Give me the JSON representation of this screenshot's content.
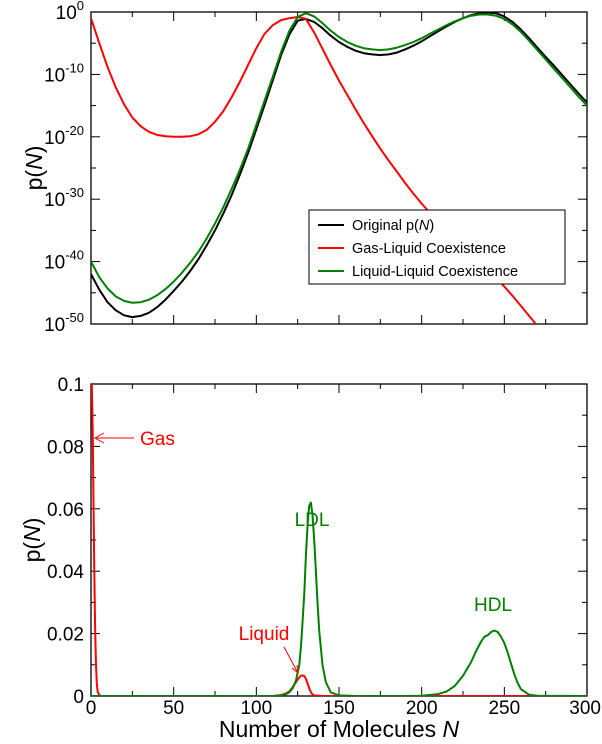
{
  "chart_data": [
    {
      "type": "line",
      "ylabel_main": "p(",
      "ylabel_var": "N",
      "ylabel_close": ")",
      "yscale": "log",
      "xlim": [
        0,
        300
      ],
      "ylim_exp": [
        -50,
        0
      ],
      "xticks": [
        0,
        50,
        100,
        150,
        200,
        250,
        300
      ],
      "ytick_exponents": [
        "0",
        "-10",
        "-20",
        "-30",
        "-40",
        "-50"
      ],
      "ytick_base": "10",
      "legend_position": "lower-right",
      "series": [
        {
          "name": "Original p(N)",
          "color": "#000000",
          "x": [
            0,
            5,
            10,
            15,
            20,
            25,
            30,
            35,
            40,
            45,
            50,
            55,
            60,
            65,
            70,
            75,
            80,
            85,
            90,
            95,
            100,
            105,
            110,
            115,
            120,
            125,
            130,
            135,
            140,
            145,
            150,
            155,
            160,
            165,
            170,
            175,
            180,
            185,
            190,
            195,
            200,
            205,
            210,
            215,
            220,
            225,
            230,
            235,
            240,
            245,
            250,
            255,
            260,
            265,
            270,
            275,
            280,
            285,
            290,
            295,
            300
          ],
          "y_log10": [
            -42,
            -44.5,
            -46.5,
            -47.8,
            -48.6,
            -48.9,
            -48.7,
            -48.2,
            -47.3,
            -46.1,
            -44.7,
            -43.2,
            -41.5,
            -39.6,
            -37.4,
            -35,
            -32.3,
            -29.4,
            -26.1,
            -22.6,
            -18.8,
            -14.9,
            -10.9,
            -6.9,
            -3.6,
            -1.4,
            -1.1,
            -1.6,
            -2.6,
            -3.8,
            -4.8,
            -5.6,
            -6.2,
            -6.6,
            -6.8,
            -6.9,
            -6.8,
            -6.5,
            -6,
            -5.4,
            -4.7,
            -3.9,
            -3.1,
            -2.3,
            -1.6,
            -1,
            -0.5,
            -0.2,
            -0.1,
            -0.2,
            -0.7,
            -1.6,
            -2.8,
            -4.2,
            -5.7,
            -7.2,
            -8.6,
            -10.1,
            -11.6,
            -13.1,
            -14.5
          ]
        },
        {
          "name": "Gas-Liquid Coexistence",
          "color": "#ff0000",
          "x": [
            0,
            5,
            10,
            15,
            20,
            25,
            30,
            35,
            40,
            45,
            50,
            55,
            60,
            65,
            70,
            75,
            80,
            85,
            90,
            95,
            100,
            105,
            110,
            115,
            120,
            125,
            130,
            135,
            140,
            145,
            150,
            155,
            160,
            165,
            170,
            175,
            180,
            185,
            190,
            195,
            200,
            205,
            210,
            215,
            220,
            225,
            230,
            235,
            240,
            245,
            250,
            255,
            260,
            265,
            270
          ],
          "y_log10": [
            -1,
            -5,
            -8.8,
            -12.1,
            -14.8,
            -16.9,
            -18.3,
            -19.2,
            -19.7,
            -19.9,
            -20,
            -20,
            -19.9,
            -19.6,
            -18.9,
            -17.6,
            -15.9,
            -13.7,
            -11.2,
            -8.5,
            -5.8,
            -3.5,
            -2.1,
            -1.3,
            -1,
            -0.8,
            -1.1,
            -3.3,
            -5.9,
            -8.5,
            -11,
            -13.3,
            -15.6,
            -17.8,
            -19.9,
            -21.9,
            -23.8,
            -25.6,
            -27.4,
            -29.1,
            -30.7,
            -32.2,
            -33.7,
            -35.1,
            -36.4,
            -37.7,
            -38.9,
            -40.1,
            -41.3,
            -42.6,
            -44,
            -45.5,
            -47.1,
            -48.7,
            -50.3
          ]
        },
        {
          "name": "Liquid-Liquid Coexistence",
          "color": "#008000",
          "x": [
            0,
            5,
            10,
            15,
            20,
            25,
            30,
            35,
            40,
            45,
            50,
            55,
            60,
            65,
            70,
            75,
            80,
            85,
            90,
            95,
            100,
            105,
            110,
            115,
            120,
            125,
            130,
            135,
            140,
            145,
            150,
            155,
            160,
            165,
            170,
            175,
            180,
            185,
            190,
            195,
            200,
            205,
            210,
            215,
            220,
            225,
            230,
            235,
            240,
            245,
            250,
            255,
            260,
            265,
            270,
            275,
            280,
            285,
            290,
            295,
            300
          ],
          "y_log10": [
            -40,
            -42.5,
            -44.3,
            -45.6,
            -46.3,
            -46.6,
            -46.5,
            -46.1,
            -45.4,
            -44.4,
            -43.2,
            -41.8,
            -40.2,
            -38.4,
            -36.3,
            -33.9,
            -31.3,
            -28.4,
            -25.3,
            -21.9,
            -18.1,
            -14.2,
            -10.3,
            -6.4,
            -3,
            -0.8,
            -0.2,
            -0.7,
            -1.8,
            -3,
            -4,
            -4.8,
            -5.4,
            -5.8,
            -6,
            -6.1,
            -6,
            -5.7,
            -5.3,
            -4.8,
            -4.2,
            -3.5,
            -2.8,
            -2.1,
            -1.5,
            -1,
            -0.6,
            -0.4,
            -0.4,
            -0.6,
            -1.1,
            -2,
            -3.2,
            -4.6,
            -6.1,
            -7.6,
            -9.1,
            -10.6,
            -12.1,
            -13.6,
            -15
          ]
        }
      ]
    },
    {
      "type": "line",
      "xlabel_main": "Number of Molecules ",
      "xlabel_var": "N",
      "ylabel_main": "p(",
      "ylabel_var": "N",
      "ylabel_close": ")",
      "xlim": [
        0,
        300
      ],
      "ylim": [
        0,
        0.1
      ],
      "xticks": [
        0,
        50,
        100,
        150,
        200,
        250,
        300
      ],
      "yticks": [
        "0",
        "0.02",
        "0.04",
        "0.06",
        "0.08",
        "0.1"
      ],
      "annotations": [
        {
          "text": "Gas",
          "color": "#ff0000"
        },
        {
          "text": "LDL",
          "color": "#008000"
        },
        {
          "text": "Liquid",
          "color": "#ff0000"
        },
        {
          "text": "HDL",
          "color": "#008000"
        }
      ],
      "series": [
        {
          "color": "#ff0000",
          "x": [
            0,
            0.5,
            1,
            1.5,
            2,
            2.5,
            3,
            3.5,
            4,
            5,
            6,
            8,
            100,
            110,
            115,
            118,
            120,
            122,
            124,
            126,
            127,
            128,
            129,
            130,
            131,
            132,
            133,
            134,
            135,
            140,
            300
          ],
          "y": [
            0.1,
            0.1,
            0.085,
            0.062,
            0.04,
            0.022,
            0.01,
            0.004,
            0.0015,
            0.0003,
            0,
            0,
            0,
            0,
            0.0003,
            0.0008,
            0.0015,
            0.0028,
            0.0045,
            0.006,
            0.0065,
            0.0066,
            0.0064,
            0.0055,
            0.004,
            0.0025,
            0.0012,
            0.0005,
            0.0002,
            0,
            0
          ]
        },
        {
          "color": "#008000",
          "x": [
            0,
            110,
            115,
            118,
            120,
            122,
            124,
            126,
            127,
            128,
            129,
            130,
            131,
            132,
            133,
            134,
            135,
            136,
            137,
            138,
            140,
            142,
            145,
            150,
            160,
            190,
            200,
            210,
            215,
            220,
            225,
            230,
            233,
            236,
            238,
            240,
            242,
            244,
            246,
            248,
            250,
            252,
            254,
            256,
            258,
            260,
            265,
            270,
            300
          ],
          "y": [
            0,
            0,
            0.0002,
            0.0006,
            0.0012,
            0.0025,
            0.005,
            0.01,
            0.016,
            0.024,
            0.033,
            0.045,
            0.055,
            0.061,
            0.062,
            0.058,
            0.05,
            0.04,
            0.03,
            0.021,
            0.01,
            0.0045,
            0.0012,
            0.0002,
            0,
            0,
            0.0001,
            0.0006,
            0.0014,
            0.0032,
            0.0065,
            0.011,
            0.0145,
            0.0175,
            0.019,
            0.0195,
            0.0205,
            0.021,
            0.0205,
            0.019,
            0.017,
            0.014,
            0.0105,
            0.007,
            0.0042,
            0.0022,
            0.0004,
            0.0001,
            0
          ]
        }
      ]
    }
  ]
}
